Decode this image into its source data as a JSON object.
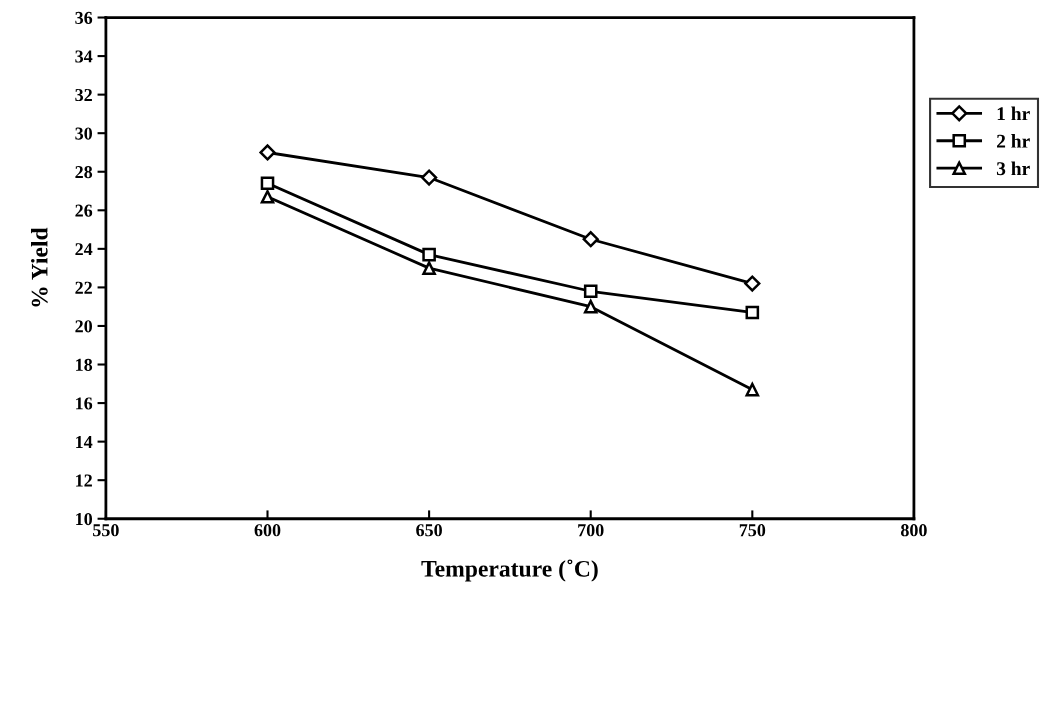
{
  "chart_data": {
    "type": "line",
    "xlabel": "Temperature (˚C)",
    "ylabel": "% Yield",
    "x": [
      600,
      650,
      700,
      750
    ],
    "series": [
      {
        "name": "1 hr",
        "color": "#000000",
        "marker": "diamond",
        "values": [
          29.0,
          27.7,
          24.5,
          22.2
        ]
      },
      {
        "name": "2 hr",
        "color": "#000000",
        "marker": "square",
        "values": [
          27.4,
          23.7,
          21.8,
          20.7
        ]
      },
      {
        "name": "3 hr",
        "color": "#000000",
        "marker": "triangle",
        "values": [
          26.7,
          23.0,
          21.0,
          16.7
        ]
      }
    ],
    "xlim": [
      550,
      800
    ],
    "xticks": [
      550,
      600,
      650,
      700,
      750,
      800
    ],
    "ylim": [
      10,
      36
    ],
    "yticks": [
      10,
      12,
      14,
      16,
      18,
      20,
      22,
      24,
      26,
      28,
      30,
      32,
      34,
      36
    ],
    "legend": "right",
    "grid": false,
    "line_style": "solid"
  }
}
